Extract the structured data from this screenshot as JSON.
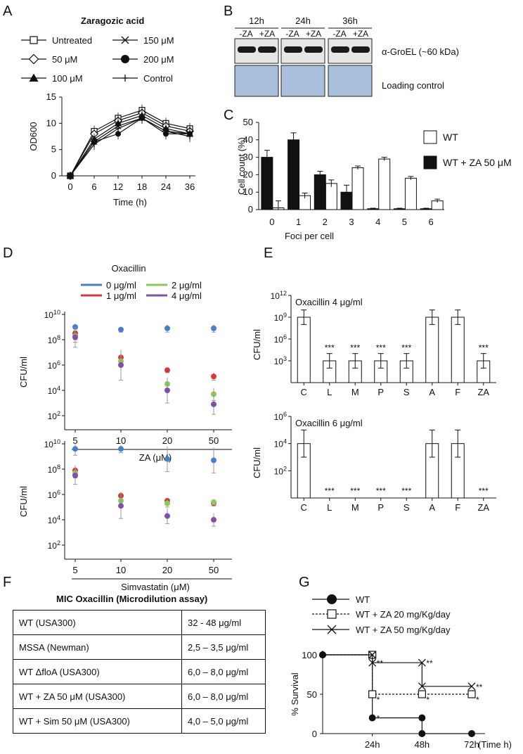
{
  "panels": {
    "a": "A",
    "b": "B",
    "c": "C",
    "d": "D",
    "e": "E",
    "f": "F",
    "g": "G"
  },
  "panel_a": {
    "title": "Zaragozic acid",
    "legend": [
      "Untreated",
      "50 μM",
      "100 μM",
      "150 μM",
      "200 μM",
      "Control"
    ]
  },
  "panel_b": {
    "timepoints": [
      "12h",
      "24h",
      "36h"
    ],
    "lane_labels": [
      "-ZA",
      "+ZA"
    ],
    "band_label": "α-GroEL (~60 kDa)",
    "loading_label": "Loading control"
  },
  "panel_d": {
    "legend_title": "Oxacillin",
    "legend": [
      "0 μg/ml",
      "1 μg/ml",
      "2 μg/ml",
      "4 μg/ml"
    ],
    "ylabel": "CFU/ml",
    "xlabel_top": "ZA (μM)",
    "xlabel_bottom": "Simvastatin (μM)"
  },
  "panel_e": {
    "top_title": "Oxacillin 4 μg/ml",
    "bottom_title": "Oxacillin 6 μg/ml",
    "ylabel": "CFU/ml",
    "significance": "***"
  },
  "panel_f": {
    "title": "MIC Oxacillin (Microdilution assay)",
    "rows": [
      {
        "strain": "WT (USA300)",
        "mic": "32 - 48 μg/ml"
      },
      {
        "strain": "MSSA (Newman)",
        "mic": "2,5 – 3,5 μg/ml"
      },
      {
        "strain": "WT ΔfloA (USA300)",
        "mic": "6,0 – 8,0 μg/ml"
      },
      {
        "strain": "WT + ZA 50 μM (USA300)",
        "mic": "6,0 – 8,0 μg/ml"
      },
      {
        "strain": "WT + Sim 50 μM (USA300)",
        "mic": "4,0 – 5,0 μg/ml"
      }
    ]
  },
  "panel_g": {
    "legend": [
      "WT",
      "WT + ZA 20 mg/Kg/day",
      "WT + ZA 50 mg/Kg/day"
    ],
    "ylabel": "% Survival",
    "xlabel": "(Time h)"
  },
  "chart_data": [
    {
      "id": "A",
      "type": "line",
      "title": "Zaragozic acid",
      "xlabel": "Time (h)",
      "ylabel": "OD600",
      "x": [
        0,
        6,
        12,
        18,
        24,
        36
      ],
      "ylim": [
        0,
        15
      ],
      "yticks": [
        0,
        5,
        10,
        15
      ],
      "series": [
        {
          "name": "Untreated",
          "values": [
            0,
            8.5,
            11,
            12.5,
            10,
            9
          ]
        },
        {
          "name": "50 μM",
          "values": [
            0,
            8,
            10.5,
            12,
            9.5,
            8.5
          ]
        },
        {
          "name": "100 μM",
          "values": [
            0,
            7,
            10,
            11.5,
            9,
            8
          ]
        },
        {
          "name": "150 μM",
          "values": [
            0,
            6.5,
            9.5,
            11,
            8.5,
            8
          ]
        },
        {
          "name": "200 μM",
          "values": [
            0,
            6.5,
            8,
            11,
            8,
            8
          ]
        },
        {
          "name": "Control",
          "values": [
            0,
            6,
            9,
            11,
            8.5,
            7.5
          ]
        }
      ]
    },
    {
      "id": "C",
      "type": "bar",
      "xlabel": "Foci per cell",
      "ylabel": "Cell count (%)",
      "ylim": [
        0,
        50
      ],
      "yticks": [
        0,
        10,
        20,
        30,
        40,
        50
      ],
      "categories": [
        "0",
        "1",
        "2",
        "3",
        "4",
        "5",
        "6"
      ],
      "series": [
        {
          "name": "WT",
          "values": [
            1,
            8,
            15,
            24,
            29,
            18,
            5
          ],
          "errors": [
            4,
            1.5,
            2,
            1,
            1,
            1,
            1
          ]
        },
        {
          "name": "WT + ZA 50 μM",
          "values": [
            30,
            40,
            20,
            10,
            0.5,
            0.5,
            0.5
          ],
          "errors": [
            4,
            4,
            2,
            4,
            0.3,
            0.3,
            0.3
          ]
        }
      ]
    },
    {
      "id": "D-ZA",
      "type": "scatter",
      "xlabel": "ZA (μM)",
      "ylabel": "CFU/ml",
      "yscale": "log10",
      "ylim": [
        1,
        10
      ],
      "yticks": [
        "10^2",
        "10^4",
        "10^6",
        "10^8",
        "10^10"
      ],
      "categories": [
        "5",
        "10",
        "20",
        "50"
      ],
      "series": [
        {
          "name": "0 μg/ml",
          "color": "#4a7fc8",
          "values": [
            9,
            8.8,
            8.9,
            8.9
          ],
          "errors": [
            0.3,
            0.2,
            0.3,
            0.3
          ]
        },
        {
          "name": "1 μg/ml",
          "color": "#d23b3b",
          "values": [
            8.5,
            6.6,
            5.6,
            5.1
          ],
          "errors": [
            0.5,
            0.2,
            0.2,
            0.3
          ]
        },
        {
          "name": "2 μg/ml",
          "color": "#8ec85a",
          "values": [
            8.3,
            6.3,
            4.5,
            3.7
          ],
          "errors": [
            0.5,
            0.3,
            0.4,
            0.5
          ]
        },
        {
          "name": "4 μg/ml",
          "color": "#8050a8",
          "values": [
            8.2,
            6,
            4,
            2.9
          ],
          "errors": [
            0.8,
            1.2,
            1,
            0.8
          ]
        }
      ]
    },
    {
      "id": "D-Sim",
      "type": "scatter",
      "xlabel": "Simvastatin (μM)",
      "ylabel": "CFU/ml",
      "yscale": "log10",
      "ylim": [
        1,
        10
      ],
      "yticks": [
        "10^2",
        "10^4",
        "10^6",
        "10^8",
        "10^10"
      ],
      "categories": [
        "5",
        "10",
        "20",
        "50"
      ],
      "series": [
        {
          "name": "0 μg/ml",
          "color": "#4a7fc8",
          "values": [
            9.6,
            9.6,
            8.8,
            8.7
          ],
          "errors": [
            0.5,
            0.3,
            1,
            1
          ]
        },
        {
          "name": "1 μg/ml",
          "color": "#d23b3b",
          "values": [
            7.9,
            5.9,
            5.5,
            5.3
          ],
          "errors": [
            0.4,
            0.3,
            0.2,
            0.2
          ]
        },
        {
          "name": "2 μg/ml",
          "color": "#8ec85a",
          "values": [
            7.7,
            5.5,
            5.3,
            5.4
          ],
          "errors": [
            0.4,
            0.4,
            0.3,
            0.2
          ]
        },
        {
          "name": "4 μg/ml",
          "color": "#8050a8",
          "values": [
            7.5,
            5.1,
            4.3,
            4
          ],
          "errors": [
            0.7,
            1,
            0.6,
            0.5
          ]
        }
      ]
    },
    {
      "id": "E-4",
      "type": "bar",
      "title": "Oxacillin 4 μg/ml",
      "ylabel": "CFU/ml",
      "yscale": "log10",
      "ylim": [
        0,
        12
      ],
      "yticks": [
        "10^3",
        "10^6",
        "10^9",
        "10^12"
      ],
      "categories": [
        "C",
        "L",
        "M",
        "P",
        "S",
        "A",
        "F",
        "ZA"
      ],
      "values": [
        9,
        3,
        3,
        3,
        3,
        9,
        9,
        3
      ],
      "errors": [
        1,
        1,
        1,
        1,
        1,
        1,
        1,
        1
      ],
      "significant": [
        false,
        true,
        true,
        true,
        true,
        false,
        false,
        true
      ]
    },
    {
      "id": "E-6",
      "type": "bar",
      "title": "Oxacillin 6 μg/ml",
      "ylabel": "CFU/ml",
      "yscale": "log10",
      "ylim": [
        0,
        6
      ],
      "yticks": [
        "10^2",
        "10^4",
        "10^6"
      ],
      "categories": [
        "C",
        "L",
        "M",
        "P",
        "S",
        "A",
        "F",
        "ZA"
      ],
      "values": [
        4,
        0,
        0,
        0,
        0,
        4,
        4,
        0
      ],
      "errors": [
        1,
        0,
        0,
        0,
        0,
        1,
        1,
        0
      ],
      "significant": [
        false,
        true,
        true,
        true,
        true,
        false,
        false,
        true
      ]
    },
    {
      "id": "G",
      "type": "line",
      "ylabel": "% Survival",
      "xlabel": "(Time h)",
      "ylim": [
        0,
        100
      ],
      "yticks": [
        0,
        50,
        100
      ],
      "xticks": [
        "24h",
        "48h",
        "72h"
      ],
      "series": [
        {
          "name": "WT",
          "x": [
            0,
            24,
            24,
            48,
            48,
            72
          ],
          "values": [
            100,
            100,
            20,
            20,
            0,
            0
          ],
          "annotations": [
            "",
            "",
            "*",
            "",
            "",
            ""
          ]
        },
        {
          "name": "WT + ZA 20 mg/Kg/day",
          "x": [
            0,
            24,
            24,
            48,
            72
          ],
          "values": [
            100,
            100,
            50,
            50,
            50
          ],
          "annotations": [
            "",
            "",
            "*",
            "*",
            "*"
          ]
        },
        {
          "name": "WT + ZA 50 mg/Kg/day",
          "x": [
            0,
            24,
            24,
            48,
            48,
            72
          ],
          "values": [
            100,
            100,
            90,
            90,
            60,
            60
          ],
          "annotations": [
            "",
            "",
            "**",
            "**",
            "",
            "**"
          ]
        }
      ]
    }
  ]
}
